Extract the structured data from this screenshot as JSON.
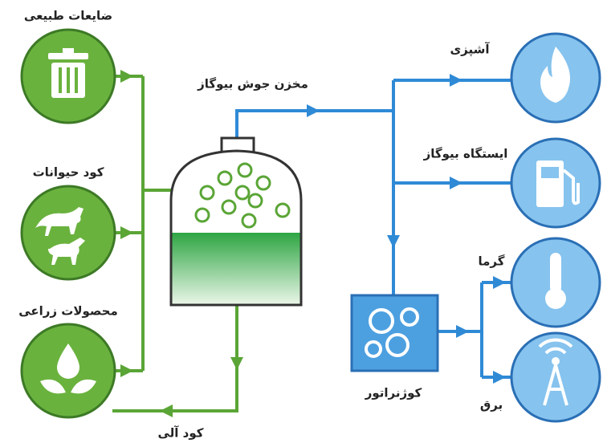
{
  "sources": [
    {
      "label": "ضایعات طبیعی"
    },
    {
      "label": "کود حیوانات"
    },
    {
      "label": "محصولات زراعی"
    }
  ],
  "digester": {
    "label": "مخزن جوش بیوگاز"
  },
  "uses": [
    {
      "label": "آشپزی"
    },
    {
      "label": "ایستگاه بیوگاز"
    }
  ],
  "cogenerator": {
    "label": "کوژنراتور",
    "outputs": [
      {
        "label": "گرما"
      },
      {
        "label": "برق"
      }
    ]
  },
  "by_product": {
    "label": "کود آلی"
  }
}
